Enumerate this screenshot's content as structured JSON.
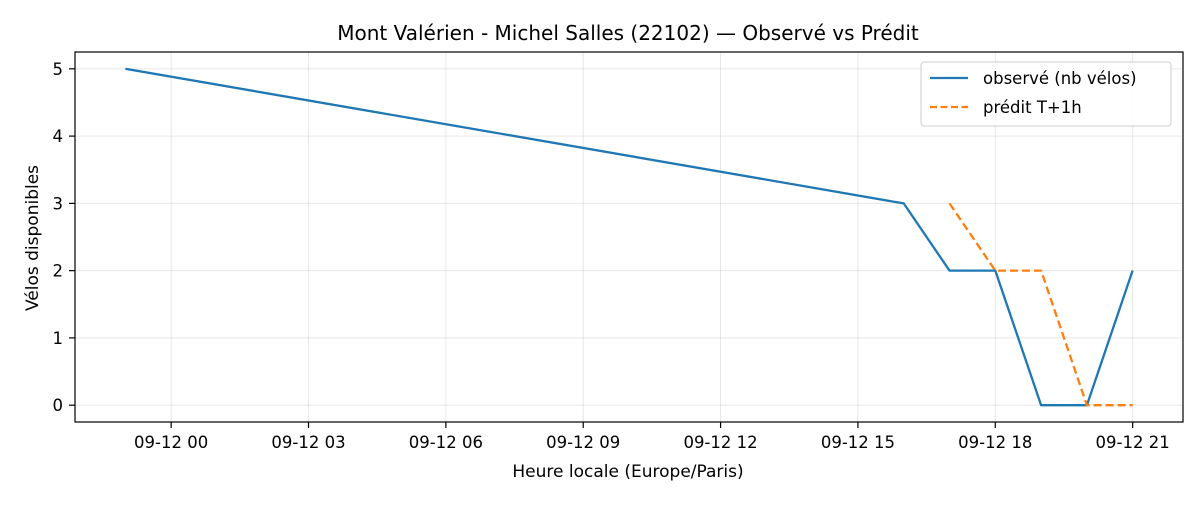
{
  "chart_data": {
    "type": "line",
    "title": "Mont Valérien - Michel Salles (22102) — Observé vs Prédit",
    "xlabel": "Heure locale (Europe/Paris)",
    "ylabel": "Vélos disponibles",
    "x_tick_labels": [
      "09-12 00",
      "09-12 03",
      "09-12 06",
      "09-12 09",
      "09-12 12",
      "09-12 15",
      "09-12 18",
      "09-12 21"
    ],
    "x_tick_hours": [
      0,
      3,
      6,
      9,
      12,
      15,
      18,
      21
    ],
    "y_ticks": [
      0,
      1,
      2,
      3,
      4,
      5
    ],
    "xlim_hours": [
      -2.1,
      22.1
    ],
    "ylim": [
      -0.25,
      5.25
    ],
    "grid": true,
    "legend_position": "top-right",
    "series": [
      {
        "name": "observé (nb vélos)",
        "color": "#1f77b4",
        "style": "solid",
        "x_hours": [
          -1,
          16,
          17,
          18,
          19,
          20,
          21
        ],
        "values": [
          5,
          3,
          2,
          2,
          0,
          0,
          2
        ]
      },
      {
        "name": "prédit T+1h",
        "color": "#ff7f0e",
        "style": "dashed",
        "x_hours": [
          17,
          18,
          19,
          20,
          21
        ],
        "values": [
          3,
          2,
          2,
          0,
          0
        ]
      }
    ]
  }
}
